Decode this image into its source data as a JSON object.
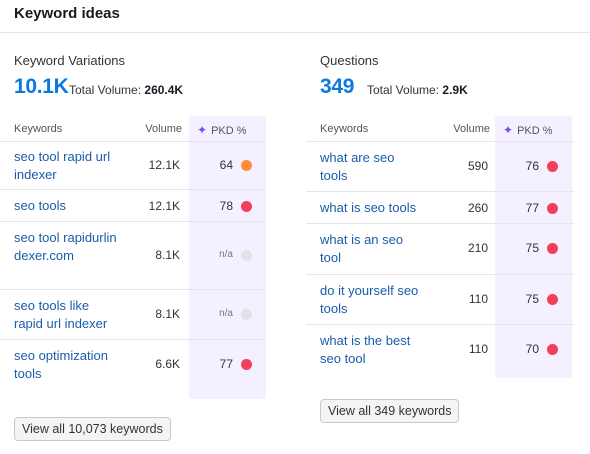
{
  "title": "Keyword ideas",
  "columns": {
    "keywords": "Keywords",
    "volume": "Volume",
    "pkd": "PKD %"
  },
  "left": {
    "title": "Keyword Variations",
    "big_value": "10.1K",
    "total_label": "Total Volume:",
    "total_value": "260.4K",
    "rows": [
      {
        "keyword": "seo tool rapid url indexer",
        "volume": "12.1K",
        "pkd": "64",
        "pkd_color": "#ff8c3b"
      },
      {
        "keyword": "seo tools",
        "volume": "12.1K",
        "pkd": "78",
        "pkd_color": "#f23f5b"
      },
      {
        "keyword": "seo tool rapidurlindexer.com",
        "volume": "8.1K",
        "pkd": "n/a",
        "pkd_color": "#e0e2e6"
      },
      {
        "keyword": "seo tools like rapid url indexer",
        "volume": "8.1K",
        "pkd": "n/a",
        "pkd_color": "#e0e2e6"
      },
      {
        "keyword": "seo optimization tools",
        "volume": "6.6K",
        "pkd": "77",
        "pkd_color": "#f23f5b"
      }
    ],
    "view_all": "View all 10,073 keywords"
  },
  "right": {
    "title": "Questions",
    "big_value": "349",
    "total_label": "Total Volume:",
    "total_value": "2.9K",
    "rows": [
      {
        "keyword": "what are seo tools",
        "volume": "590",
        "pkd": "76",
        "pkd_color": "#f23f5b"
      },
      {
        "keyword": "what is seo tools",
        "volume": "260",
        "pkd": "77",
        "pkd_color": "#f23f5b"
      },
      {
        "keyword": "what is an seo tool",
        "volume": "210",
        "pkd": "75",
        "pkd_color": "#f23f5b"
      },
      {
        "keyword": "do it yourself seo tools",
        "volume": "110",
        "pkd": "75",
        "pkd_color": "#f23f5b"
      },
      {
        "keyword": "what is the best seo tool",
        "volume": "110",
        "pkd": "70",
        "pkd_color": "#f23f5b"
      }
    ],
    "view_all": "View all 349 keywords"
  }
}
